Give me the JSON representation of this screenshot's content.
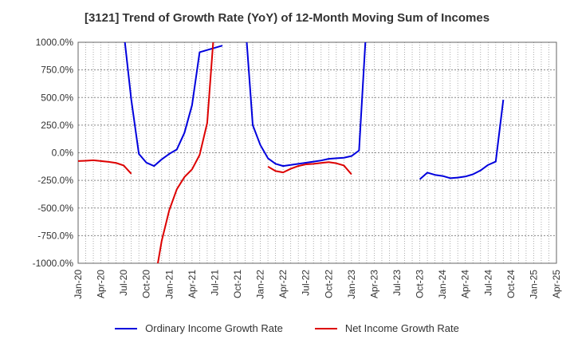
{
  "chart_data": {
    "type": "line",
    "title": "[3121]  Trend of Growth Rate (YoY) of 12-Month Moving Sum of Incomes",
    "xlabel": "",
    "ylabel": "",
    "ylim": [
      -1000,
      1000
    ],
    "y_ticks": [
      "1000.0%",
      "750.0%",
      "500.0%",
      "250.0%",
      "0.0%",
      "-250.0%",
      "-500.0%",
      "-750.0%",
      "-1000.0%"
    ],
    "y_tick_values": [
      1000,
      750,
      500,
      250,
      0,
      -250,
      -500,
      -750,
      -1000
    ],
    "x_tick_labels": [
      "Jan-20",
      "Apr-20",
      "Jul-20",
      "Oct-20",
      "Jan-21",
      "Apr-21",
      "Jul-21",
      "Oct-21",
      "Jan-22",
      "Apr-22",
      "Jul-22",
      "Oct-22",
      "Jan-23",
      "Apr-23",
      "Jul-23",
      "Oct-23",
      "Jan-24",
      "Apr-24",
      "Jul-24",
      "Oct-24",
      "Jan-25",
      "Apr-25"
    ],
    "grid": true,
    "legend_position": "bottom",
    "series": [
      {
        "name": "Ordinary Income Growth Rate",
        "color": "#0000dd",
        "values": [
          null,
          null,
          null,
          null,
          null,
          null,
          1100,
          480,
          -10,
          -90,
          -120,
          -60,
          -10,
          30,
          180,
          430,
          910,
          930,
          950,
          970,
          null,
          null,
          1200,
          250,
          70,
          -50,
          -100,
          -120,
          -110,
          -100,
          -90,
          -80,
          -70,
          -55,
          -50,
          -45,
          -30,
          20,
          1200,
          null,
          null,
          null,
          null,
          null,
          null,
          -240,
          -180,
          -200,
          -210,
          -230,
          -225,
          -215,
          -195,
          -160,
          -110,
          -80,
          480
        ]
      },
      {
        "name": "Net Income Growth Rate",
        "color": "#dd0000",
        "values": [
          -75,
          -72,
          -68,
          -75,
          -82,
          -92,
          -115,
          -190,
          null,
          null,
          -1200,
          -800,
          -520,
          -330,
          -220,
          -150,
          -20,
          270,
          1200,
          null,
          null,
          null,
          null,
          null,
          null,
          -125,
          -165,
          -178,
          -145,
          -120,
          -105,
          -100,
          -92,
          -85,
          -95,
          -115,
          -195,
          null,
          null,
          null,
          null,
          null,
          null,
          null,
          null,
          null,
          null,
          null,
          null,
          null,
          null,
          null,
          null,
          null,
          null,
          null,
          null
        ]
      }
    ]
  }
}
